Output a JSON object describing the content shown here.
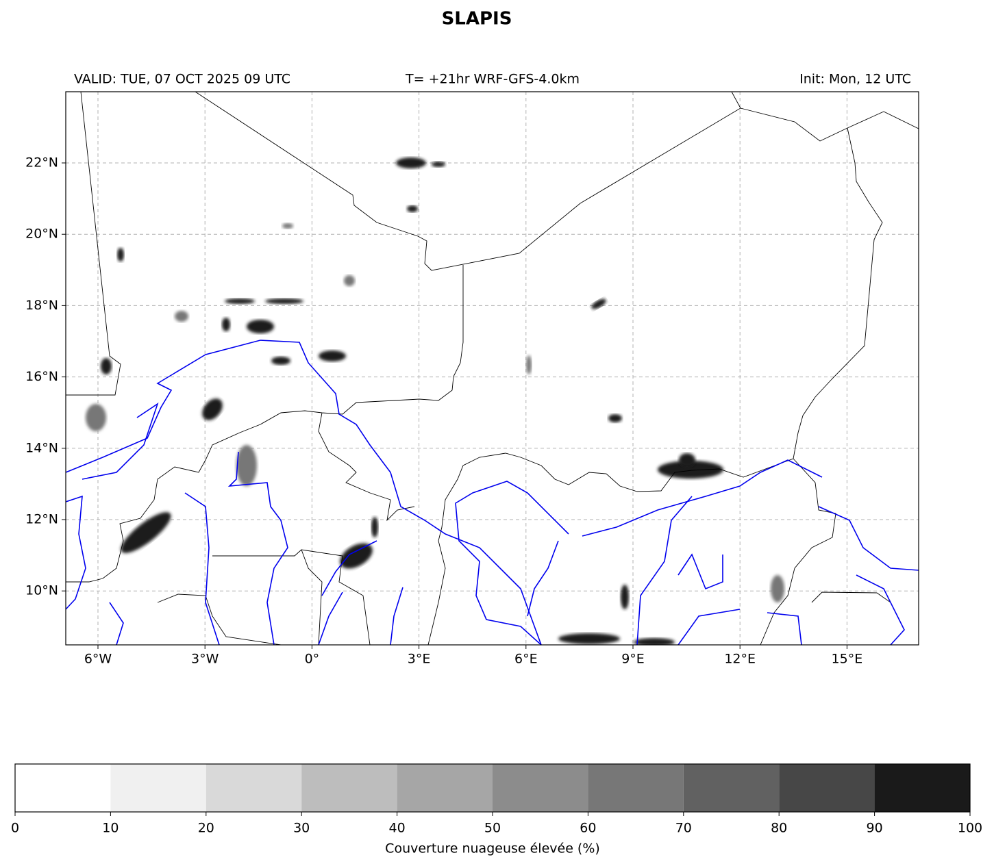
{
  "title": "SLAPIS",
  "header": {
    "valid": "VALID: TUE, 07 OCT 2025 09 UTC",
    "model": "T= +21hr WRF-GFS-4.0km",
    "init": "Init: Mon, 12 UTC"
  },
  "map": {
    "lon_labels": [
      "6°W",
      "3°W",
      "0°",
      "3°E",
      "6°E",
      "9°E",
      "12°E",
      "15°E"
    ],
    "lat_labels": [
      "22°N",
      "20°N",
      "18°N",
      "16°N",
      "14°N",
      "12°N",
      "10°N"
    ]
  },
  "colorbar": {
    "ticks": [
      0,
      10,
      20,
      30,
      40,
      50,
      60,
      70,
      80,
      90,
      100
    ],
    "colors": [
      "#ffffff",
      "#f0f0f0",
      "#d9d9d9",
      "#bdbdbd",
      "#a6a6a6",
      "#8c8c8c",
      "#777777",
      "#616161",
      "#474747",
      "#1a1a1a"
    ],
    "label": "Couverture nuageuse élevée (%)"
  }
}
